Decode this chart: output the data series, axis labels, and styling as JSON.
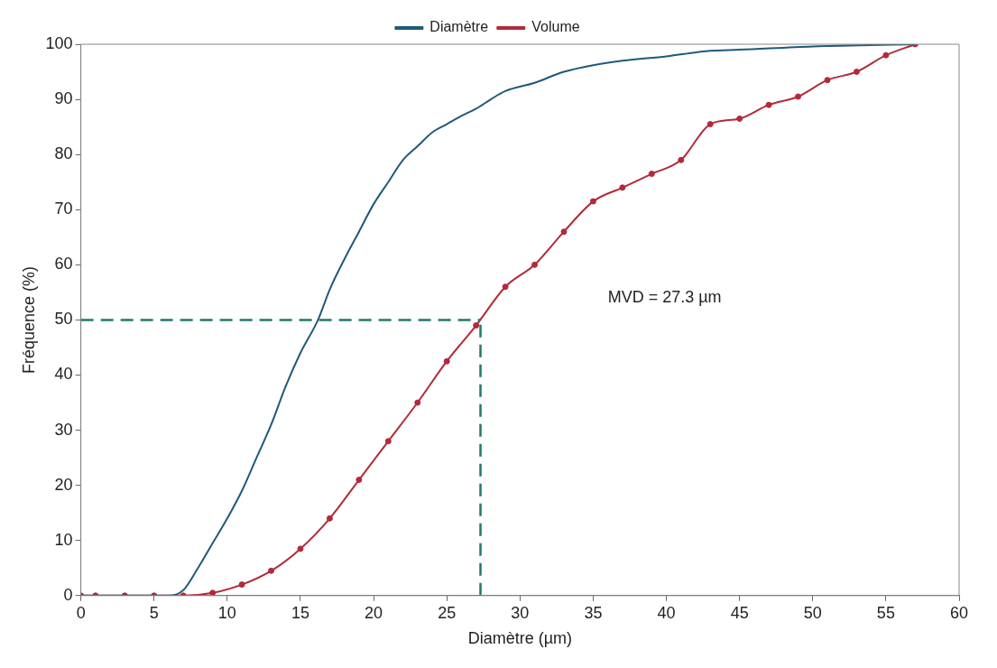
{
  "chart_data": {
    "type": "line",
    "xlabel": "Diamètre (µm)",
    "ylabel": "Fréquence (%)",
    "xlim": [
      0,
      60
    ],
    "ylim": [
      0,
      100
    ],
    "xticks": [
      0,
      5,
      10,
      15,
      20,
      25,
      30,
      35,
      40,
      45,
      50,
      55,
      60
    ],
    "yticks": [
      0,
      10,
      20,
      30,
      40,
      50,
      60,
      70,
      80,
      90,
      100
    ],
    "grid": false,
    "legend": "top",
    "line_style": "solid",
    "series": [
      {
        "name": "Diamètre",
        "color": "#1f5a7a",
        "marker": "none",
        "x": [
          0,
          3,
          6,
          7,
          8,
          9,
          10,
          11,
          12,
          13,
          14,
          15,
          16.2,
          17,
          18,
          19,
          20,
          21,
          22,
          23,
          24,
          25,
          26,
          27,
          28,
          29,
          31,
          33,
          35,
          37,
          40,
          43,
          45,
          50,
          57
        ],
        "values": [
          0,
          0,
          0,
          1,
          5,
          9.5,
          14,
          19,
          25,
          31,
          38,
          44,
          50,
          55.5,
          61,
          66,
          71,
          75,
          79,
          81.5,
          84,
          85.5,
          87,
          88.3,
          90,
          91.5,
          93,
          95,
          96.2,
          97,
          97.8,
          98.8,
          99,
          99.6,
          100
        ]
      },
      {
        "name": "Volume",
        "color": "#b22a3a",
        "marker": "circle",
        "x": [
          0,
          1,
          3,
          5,
          7,
          9,
          11,
          13,
          15,
          17,
          19,
          21,
          23,
          25,
          27,
          29,
          31,
          33,
          35,
          37,
          39,
          41,
          43,
          45,
          47,
          49,
          51,
          53,
          55,
          57
        ],
        "values": [
          0,
          0,
          0,
          0,
          0,
          0.5,
          2,
          4.5,
          8.5,
          14,
          21,
          28,
          35,
          42.5,
          49,
          56,
          60,
          66,
          71.5,
          74,
          76.5,
          79,
          85.5,
          86.5,
          89,
          90.5,
          93.5,
          95,
          98,
          100
        ]
      }
    ],
    "ref_lines": [
      {
        "axis": "x",
        "value": 27.3,
        "color": "#1f7a6a",
        "line_style": "dashed"
      },
      {
        "axis": "y",
        "value": 50,
        "color": "#1f7a6a",
        "line_style": "dashed"
      }
    ],
    "annotations": [
      "MVD = 27.3 µm"
    ]
  }
}
